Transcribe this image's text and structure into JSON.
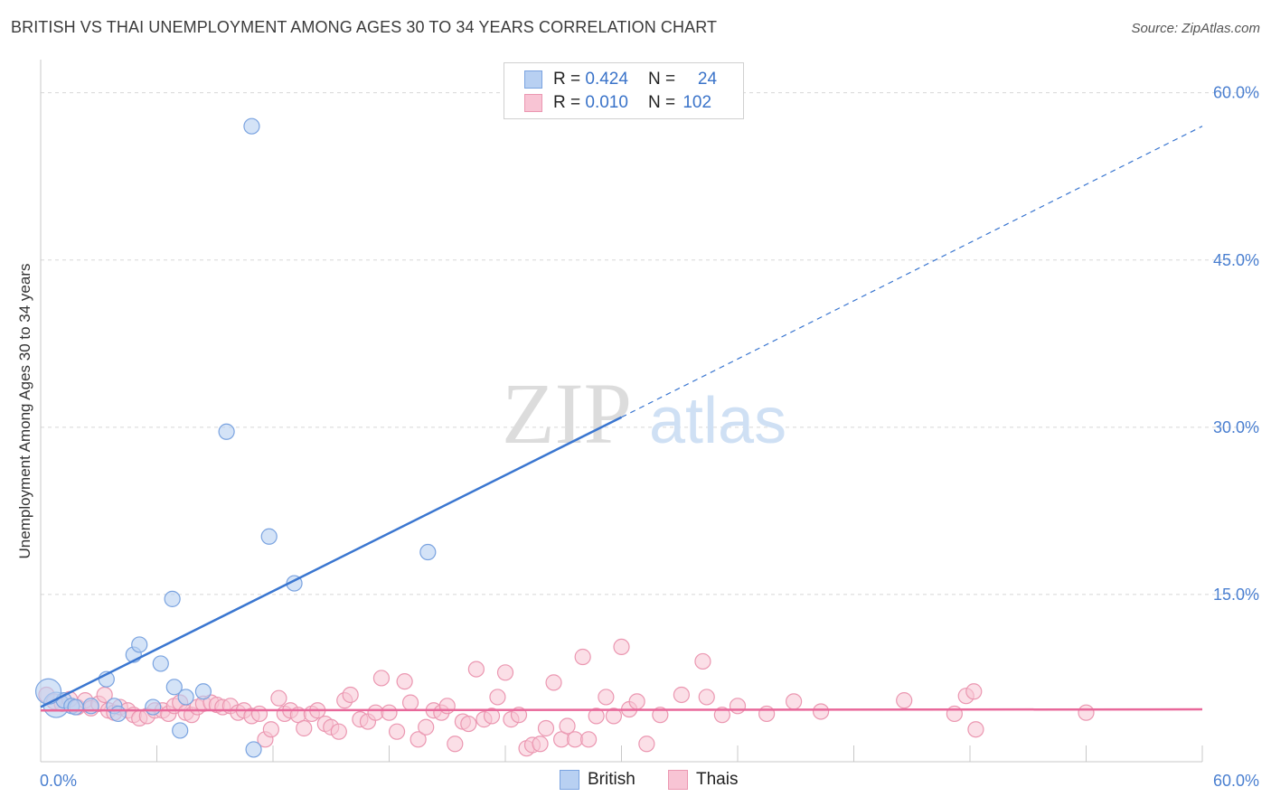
{
  "title": "BRITISH VS THAI UNEMPLOYMENT AMONG AGES 30 TO 34 YEARS CORRELATION CHART",
  "source": "Source: ZipAtlas.com",
  "watermark": {
    "zip": "ZIP",
    "atlas": "atlas"
  },
  "legend": {
    "r_label": "R =",
    "n_label": "N =",
    "rows": [
      {
        "name": "British",
        "r": "0.424",
        "n": "24",
        "fill": "#b8d0f2",
        "stroke": "#7aa3e0"
      },
      {
        "name": "Thais",
        "r": "0.010",
        "n": "102",
        "fill": "#f8c4d4",
        "stroke": "#eb97b1"
      }
    ]
  },
  "chart_data": {
    "type": "scatter",
    "title": "BRITISH VS THAI UNEMPLOYMENT AMONG AGES 30 TO 34 YEARS CORRELATION CHART",
    "xlabel": "",
    "ylabel": "Unemployment Among Ages 30 to 34 years",
    "xlim": [
      0,
      60
    ],
    "ylim": [
      0,
      62
    ],
    "x_tick_labels": [
      "0.0%",
      "60.0%"
    ],
    "y_ticks": [
      15,
      30,
      45,
      60
    ],
    "y_tick_labels": [
      "15.0%",
      "30.0%",
      "45.0%",
      "60.0%"
    ],
    "grid": true,
    "colors": {
      "british": "#3a76d0",
      "thais": "#e8689a",
      "tick_text": "#4a7fd0",
      "grid": "#d8d8d8"
    },
    "series": [
      {
        "name": "British",
        "r": 0.424,
        "n": 24,
        "points": [
          [
            0.8,
            5.1
          ],
          [
            1.2,
            5.5
          ],
          [
            1.6,
            5.0
          ],
          [
            2.6,
            5.0
          ],
          [
            3.4,
            7.4
          ],
          [
            3.8,
            5.0
          ],
          [
            4.0,
            4.3
          ],
          [
            4.8,
            9.6
          ],
          [
            5.1,
            10.5
          ],
          [
            5.8,
            4.9
          ],
          [
            6.2,
            8.8
          ],
          [
            6.8,
            14.6
          ],
          [
            6.9,
            6.7
          ],
          [
            7.5,
            5.8
          ],
          [
            8.4,
            6.3
          ],
          [
            7.2,
            2.8
          ],
          [
            9.6,
            29.6
          ],
          [
            10.9,
            57.0
          ],
          [
            11.8,
            20.2
          ],
          [
            13.1,
            16.0
          ],
          [
            20.0,
            18.8
          ],
          [
            11.0,
            1.1
          ],
          [
            1.8,
            4.9
          ],
          [
            0.4,
            6.3
          ]
        ],
        "trend": {
          "x0": 0,
          "y0": 4.9,
          "x1_solid": 30,
          "y1_solid": 30.9,
          "x1": 60,
          "y1": 57.0
        }
      },
      {
        "name": "Thais",
        "r": 0.01,
        "n": 102,
        "points": [
          [
            0.3,
            6.0
          ],
          [
            0.7,
            5.4
          ],
          [
            1.1,
            5.2
          ],
          [
            1.5,
            5.6
          ],
          [
            1.9,
            4.9
          ],
          [
            2.3,
            5.5
          ],
          [
            2.6,
            4.8
          ],
          [
            3.0,
            5.2
          ],
          [
            3.3,
            6.0
          ],
          [
            3.5,
            4.6
          ],
          [
            3.8,
            4.4
          ],
          [
            4.1,
            4.9
          ],
          [
            4.5,
            4.6
          ],
          [
            4.8,
            4.2
          ],
          [
            5.1,
            3.9
          ],
          [
            5.5,
            4.1
          ],
          [
            5.9,
            4.6
          ],
          [
            6.3,
            4.6
          ],
          [
            6.6,
            4.3
          ],
          [
            6.9,
            5.0
          ],
          [
            7.2,
            5.3
          ],
          [
            7.5,
            4.4
          ],
          [
            7.8,
            4.2
          ],
          [
            8.1,
            4.9
          ],
          [
            8.4,
            5.2
          ],
          [
            8.8,
            5.3
          ],
          [
            9.1,
            5.1
          ],
          [
            9.4,
            4.9
          ],
          [
            9.8,
            5.0
          ],
          [
            10.2,
            4.4
          ],
          [
            10.5,
            4.6
          ],
          [
            10.9,
            4.1
          ],
          [
            11.3,
            4.3
          ],
          [
            11.6,
            2.0
          ],
          [
            11.9,
            2.9
          ],
          [
            12.3,
            5.7
          ],
          [
            12.6,
            4.3
          ],
          [
            12.9,
            4.6
          ],
          [
            13.3,
            4.2
          ],
          [
            13.6,
            3.0
          ],
          [
            14.0,
            4.3
          ],
          [
            14.3,
            4.6
          ],
          [
            14.7,
            3.4
          ],
          [
            15.0,
            3.1
          ],
          [
            15.4,
            2.7
          ],
          [
            15.7,
            5.5
          ],
          [
            16.0,
            6.0
          ],
          [
            16.5,
            3.8
          ],
          [
            16.9,
            3.6
          ],
          [
            17.3,
            4.4
          ],
          [
            17.6,
            7.5
          ],
          [
            18.0,
            4.4
          ],
          [
            18.4,
            2.7
          ],
          [
            18.8,
            7.2
          ],
          [
            19.1,
            5.3
          ],
          [
            19.5,
            2.0
          ],
          [
            19.9,
            3.1
          ],
          [
            20.3,
            4.6
          ],
          [
            20.7,
            4.4
          ],
          [
            21.0,
            5.0
          ],
          [
            21.4,
            1.6
          ],
          [
            21.8,
            3.6
          ],
          [
            22.1,
            3.4
          ],
          [
            22.5,
            8.3
          ],
          [
            22.9,
            3.8
          ],
          [
            23.3,
            4.1
          ],
          [
            23.6,
            5.8
          ],
          [
            24.0,
            8.0
          ],
          [
            24.3,
            3.8
          ],
          [
            24.7,
            4.2
          ],
          [
            25.1,
            1.2
          ],
          [
            25.4,
            1.5
          ],
          [
            25.8,
            1.6
          ],
          [
            26.1,
            3.0
          ],
          [
            26.5,
            7.1
          ],
          [
            26.9,
            2.0
          ],
          [
            27.2,
            3.2
          ],
          [
            27.6,
            2.0
          ],
          [
            28.0,
            9.4
          ],
          [
            28.3,
            2.0
          ],
          [
            28.7,
            4.1
          ],
          [
            29.2,
            5.8
          ],
          [
            29.6,
            4.1
          ],
          [
            30.0,
            10.3
          ],
          [
            30.4,
            4.7
          ],
          [
            30.8,
            5.4
          ],
          [
            31.3,
            1.6
          ],
          [
            32.0,
            4.2
          ],
          [
            33.1,
            6.0
          ],
          [
            34.2,
            9.0
          ],
          [
            34.4,
            5.8
          ],
          [
            35.2,
            4.2
          ],
          [
            36.0,
            5.0
          ],
          [
            37.5,
            4.3
          ],
          [
            38.9,
            5.4
          ],
          [
            40.3,
            4.5
          ],
          [
            44.6,
            5.5
          ],
          [
            47.2,
            4.3
          ],
          [
            47.8,
            5.9
          ],
          [
            48.2,
            6.3
          ],
          [
            48.3,
            2.9
          ],
          [
            54.0,
            4.4
          ]
        ],
        "trend": {
          "x0": 0,
          "y0": 4.6,
          "x1": 60,
          "y1": 4.7
        }
      }
    ]
  }
}
